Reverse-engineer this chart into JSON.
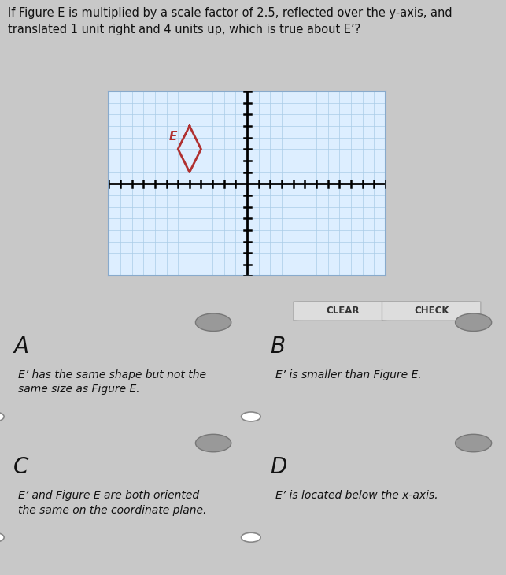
{
  "title_text": "If Figure E is multiplied by a scale factor of 2.5, reflected over the y-axis, and\ntranslated 1 unit right and 4 units up, which is true about E’?",
  "title_fontsize": 10.5,
  "bg_color": "#c8c8c8",
  "plot_bg_color": "#ddeeff",
  "grid_color": "#aacce8",
  "axis_color": "#000000",
  "figure_E_vertices": [
    [
      -5,
      5
    ],
    [
      -4,
      3
    ],
    [
      -5,
      1
    ],
    [
      -6,
      3
    ]
  ],
  "figure_E_color": "#b03030",
  "figure_E_label": "E",
  "xmin": -12,
  "xmax": 12,
  "ymin": -8,
  "ymax": 8,
  "options": [
    {
      "label": "A",
      "text": "E’ has the same shape but not the\nsame size as Figure E."
    },
    {
      "label": "B",
      "text": "E’ is smaller than Figure E."
    },
    {
      "label": "C",
      "text": "E’ and Figure E are both oriented\nthe same on the coordinate plane."
    },
    {
      "label": "D",
      "text": "E’ is located below the x-axis."
    }
  ],
  "option_bg": "#ffffff",
  "option_border": "#bbbbbb",
  "btn_color": "#dddddd",
  "speaker_color": "#999999"
}
